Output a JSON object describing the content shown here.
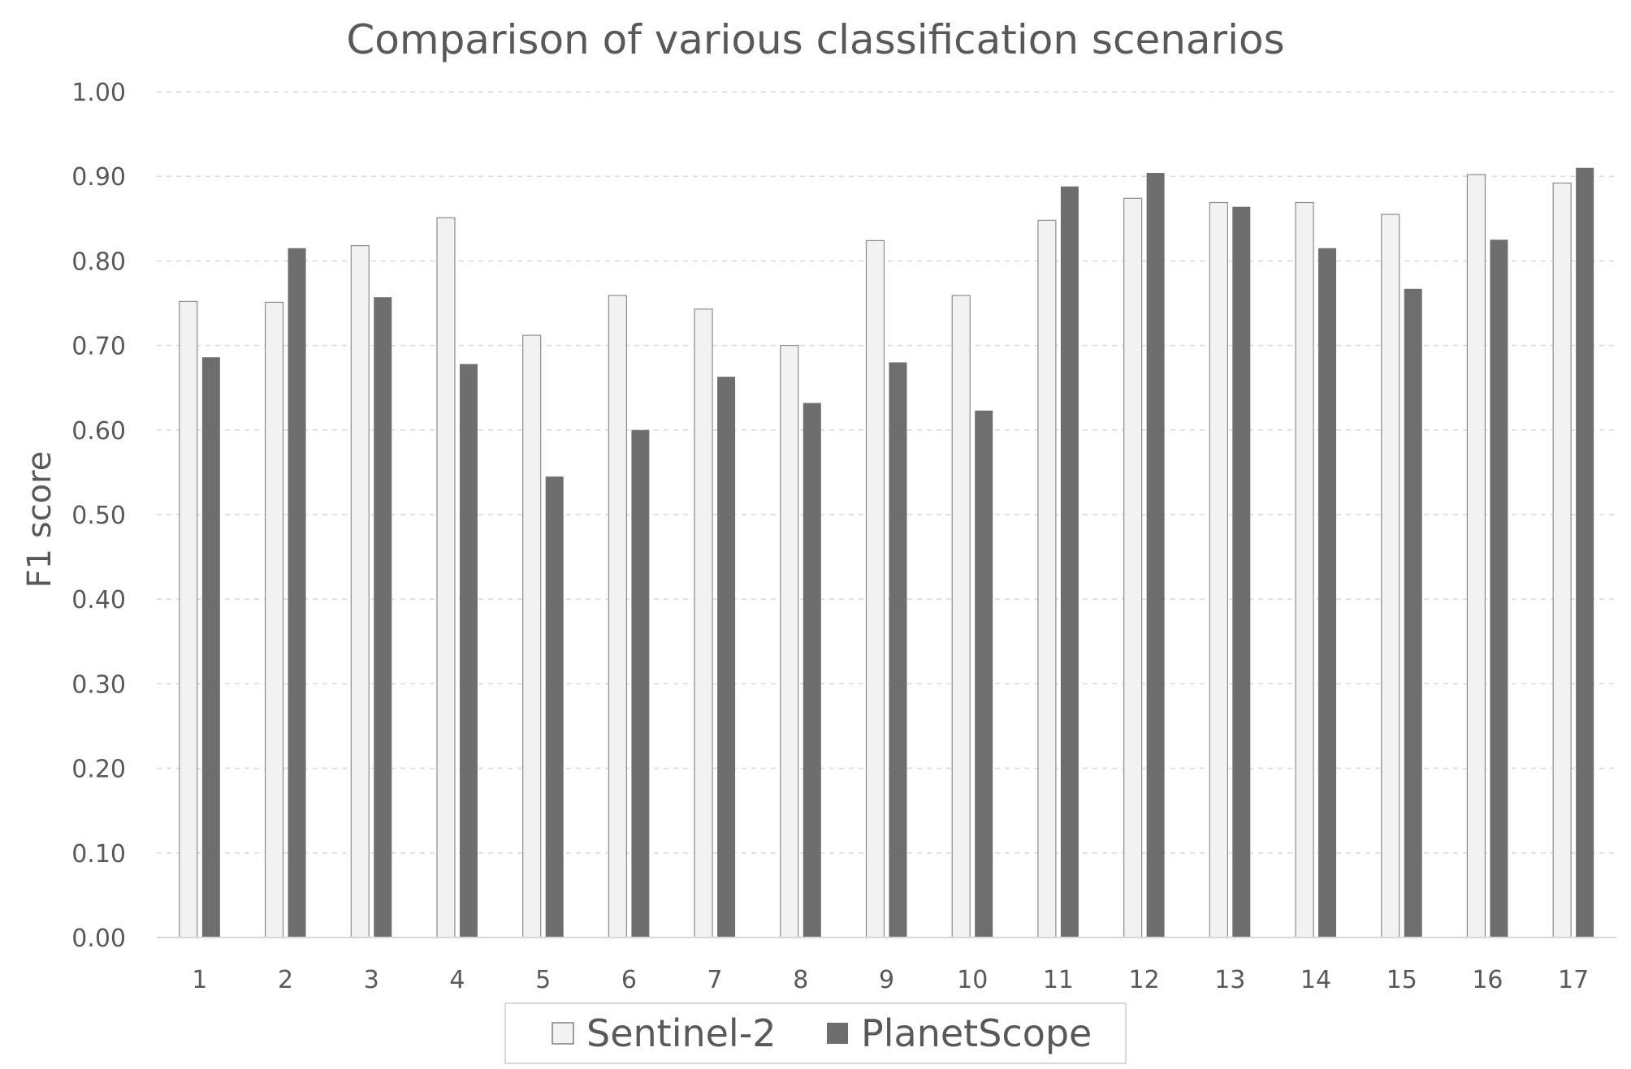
{
  "chart_data": {
    "type": "bar",
    "title": "Comparison of various classification scenarios",
    "xlabel": "",
    "ylabel": "F1 score",
    "ylim": [
      0,
      1
    ],
    "yticks": [
      "0.00",
      "0.10",
      "0.20",
      "0.30",
      "0.40",
      "0.50",
      "0.60",
      "0.70",
      "0.80",
      "0.90",
      "1.00"
    ],
    "categories": [
      "1",
      "2",
      "3",
      "4",
      "5",
      "6",
      "7",
      "8",
      "9",
      "10",
      "11",
      "12",
      "13",
      "14",
      "15",
      "16",
      "17"
    ],
    "series": [
      {
        "name": "Sentinel-2",
        "color": "#f2f2f2",
        "values": [
          0.752,
          0.751,
          0.818,
          0.851,
          0.712,
          0.759,
          0.743,
          0.7,
          0.824,
          0.759,
          0.848,
          0.874,
          0.869,
          0.869,
          0.855,
          0.902,
          0.892
        ]
      },
      {
        "name": "PlanetScope",
        "color": "#6e6e6e",
        "values": [
          0.686,
          0.815,
          0.757,
          0.678,
          0.545,
          0.6,
          0.663,
          0.632,
          0.68,
          0.623,
          0.888,
          0.904,
          0.864,
          0.815,
          0.767,
          0.825,
          0.91
        ]
      }
    ],
    "grid": true,
    "legend_position": "bottom"
  }
}
